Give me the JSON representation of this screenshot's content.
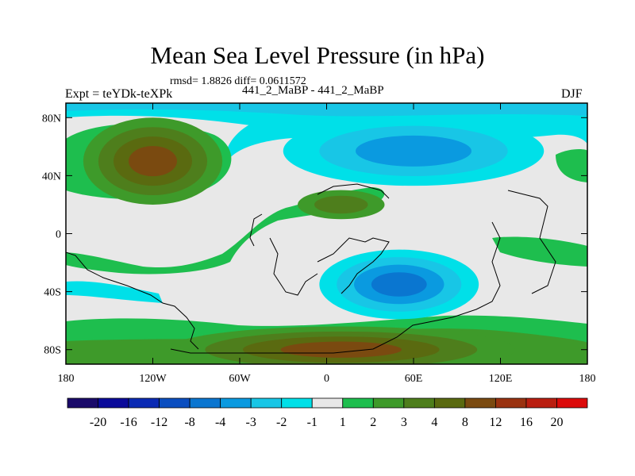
{
  "header": {
    "title": "Mean Sea Level Pressure (in hPa)",
    "stats": "rmsd= 1.8826 diff= 0.0611572",
    "subtitle": "441_2_MaBP - 441_2_MaBP",
    "expt": "Expt = teYDk-teXPk",
    "season": "DJF"
  },
  "chart_data": {
    "type": "heatmap",
    "title": "Mean Sea Level Pressure (in hPa)",
    "xlim": [
      -180,
      180
    ],
    "ylim": [
      -90,
      90
    ],
    "x_ticks": [
      {
        "value": -180,
        "label": "180"
      },
      {
        "value": -120,
        "label": "120W"
      },
      {
        "value": -60,
        "label": "60W"
      },
      {
        "value": 0,
        "label": "0"
      },
      {
        "value": 60,
        "label": "60E"
      },
      {
        "value": 120,
        "label": "120E"
      },
      {
        "value": 180,
        "label": "180"
      }
    ],
    "y_ticks": [
      {
        "value": 80,
        "label": "80N"
      },
      {
        "value": 40,
        "label": "40N"
      },
      {
        "value": 0,
        "label": "0"
      },
      {
        "value": -40,
        "label": "40S"
      },
      {
        "value": -80,
        "label": "80S"
      }
    ],
    "colorbar": {
      "colors": [
        "#1a0a6a",
        "#0a0a9a",
        "#0a2ab4",
        "#0a4ec0",
        "#0a76d0",
        "#0a9ae0",
        "#18c6e6",
        "#00e0e8",
        "#e8e8e8",
        "#1ebe4e",
        "#3e9a2a",
        "#4e7e1c",
        "#5a6a10",
        "#7a4a10",
        "#9a3210",
        "#ba1e10",
        "#dc0a0a"
      ],
      "labels": [
        "-20",
        "-16",
        "-12",
        "-8",
        "-4",
        "-3",
        "-2",
        "-1",
        "1",
        "2",
        "3",
        "4",
        "8",
        "12",
        "16",
        "20"
      ]
    },
    "anomaly_regions": [
      {
        "name": "north-pacific-high",
        "lon": -120,
        "lat": 50,
        "rlon": 48,
        "rlat": 30,
        "levels": [
          2,
          3,
          4,
          8
        ]
      },
      {
        "name": "eurasia-low",
        "lon": 60,
        "lat": 57,
        "rlon": 90,
        "rlat": 24,
        "levels": [
          -1,
          -2,
          -3
        ]
      },
      {
        "name": "southern-low",
        "lon": 50,
        "lat": -35,
        "rlon": 55,
        "rlat": 24,
        "levels": [
          -1,
          -2,
          -3,
          -4
        ]
      },
      {
        "name": "antarctic-high",
        "lon": 10,
        "lat": -80,
        "rlon": 120,
        "rlat": 16,
        "levels": [
          2,
          3,
          4,
          8
        ]
      },
      {
        "name": "tropical-high",
        "lon": 10,
        "lat": 20,
        "rlon": 30,
        "rlat": 10,
        "levels": [
          2,
          3
        ]
      }
    ]
  }
}
